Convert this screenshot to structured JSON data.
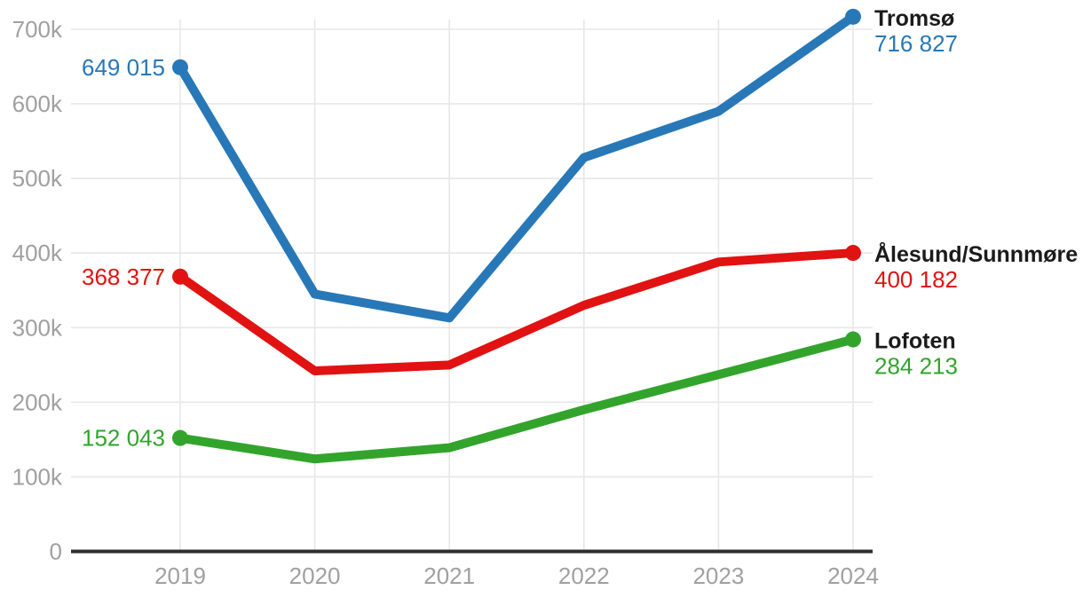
{
  "chart_data": {
    "type": "line",
    "x_labels": [
      "2019",
      "2020",
      "2021",
      "2022",
      "2023",
      "2024"
    ],
    "y_tick_labels": [
      "0",
      "100k",
      "200k",
      "300k",
      "400k",
      "500k",
      "600k",
      "700k"
    ],
    "y_tick_step": 100000,
    "ylim": [
      0,
      700000
    ],
    "grid": true,
    "legend_position": "inline-right-of-last-point",
    "colors": {
      "background": "#ffffff",
      "grid": "#e7e7e7",
      "axis": "#2e2e2e",
      "tick_text": "#a0a0a0",
      "series_name_text": "#1b1b1b"
    },
    "series": [
      {
        "name": "Tromsø",
        "color": "#2878b8",
        "values": [
          649015,
          345000,
          313000,
          528000,
          590000,
          716827
        ],
        "first_value_label": "649 015",
        "last_value_label": "716 827"
      },
      {
        "name": "Ålesund/Sunnmøre",
        "color": "#e11212",
        "values": [
          368377,
          242000,
          250000,
          330000,
          388000,
          400182
        ],
        "first_value_label": "368 377",
        "last_value_label": "400 182"
      },
      {
        "name": "Lofoten",
        "color": "#32a42c",
        "values": [
          152043,
          124000,
          139000,
          190000,
          237000,
          284213
        ],
        "first_value_label": "152 043",
        "last_value_label": "284 213"
      }
    ]
  }
}
